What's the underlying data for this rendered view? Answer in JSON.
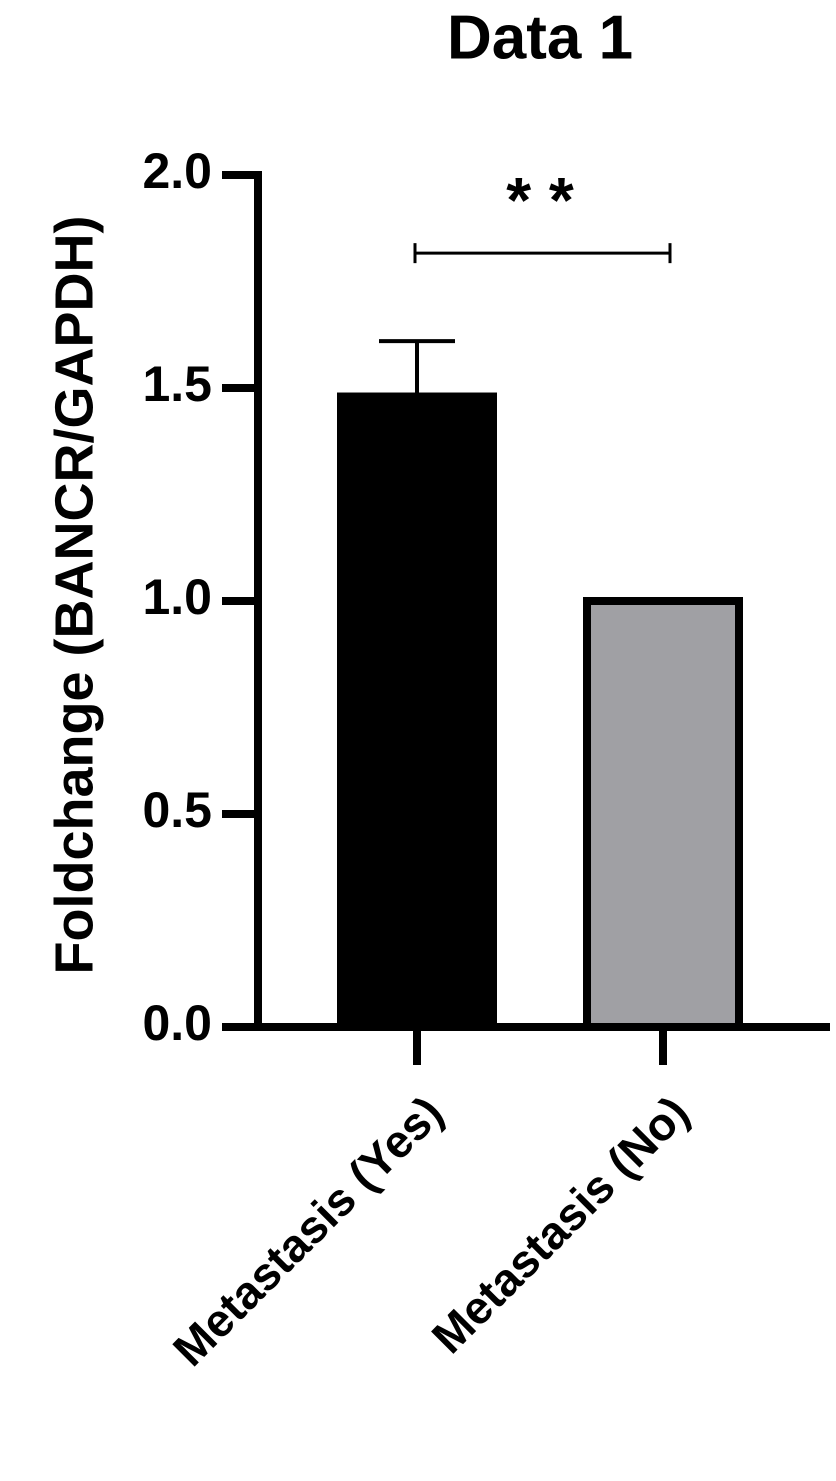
{
  "chart_data": {
    "type": "bar",
    "title": "Data 1",
    "y_label": "Foldchange (BANCR/GAPDH)",
    "categories": [
      "Metastasis (Yes)",
      "Metastasis (No)"
    ],
    "values": [
      1.48,
      1.0
    ],
    "errors": [
      0.13,
      null
    ],
    "colors": [
      "#000000",
      "#a0a0a4"
    ],
    "ylim": [
      0,
      2.0
    ],
    "yticks": [
      {
        "value": 0,
        "label": "0.0"
      },
      {
        "value": 0.5,
        "label": "0.5"
      },
      {
        "value": 1.0,
        "label": "1.0"
      },
      {
        "value": 1.5,
        "label": "1.5"
      },
      {
        "value": 2.0,
        "label": "2.0"
      }
    ],
    "annotation": "* *"
  }
}
